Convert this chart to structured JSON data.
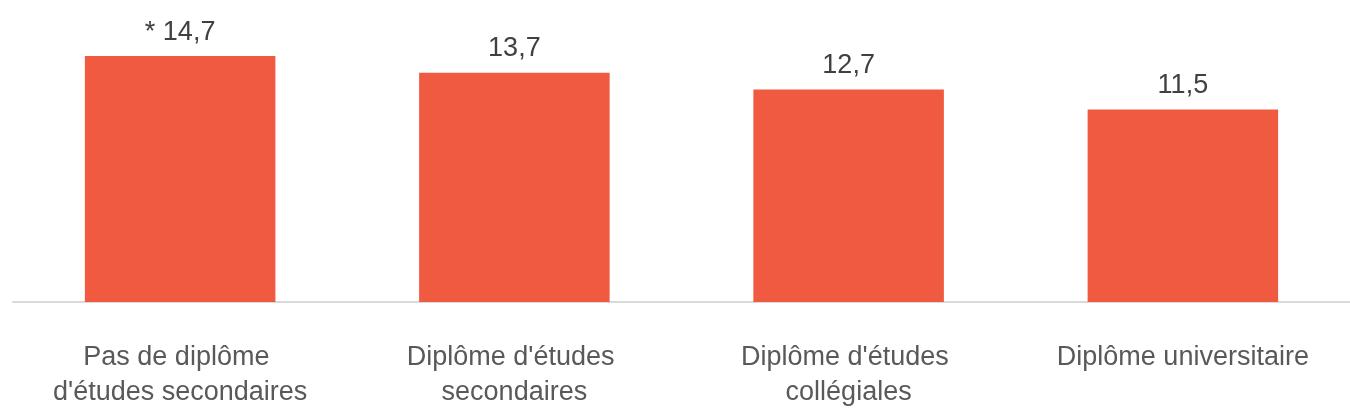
{
  "chart_data": {
    "type": "bar",
    "categories": [
      "Pas de diplôme d'études secondaires",
      "Diplôme d'études secondaires",
      "Diplôme d'études collégiales",
      "Diplôme universitaire"
    ],
    "values": [
      14.7,
      13.7,
      12.7,
      11.5
    ],
    "value_labels": [
      "* 14,7",
      "13,7",
      "12,7",
      "11,5"
    ],
    "color": "#f05a40"
  }
}
